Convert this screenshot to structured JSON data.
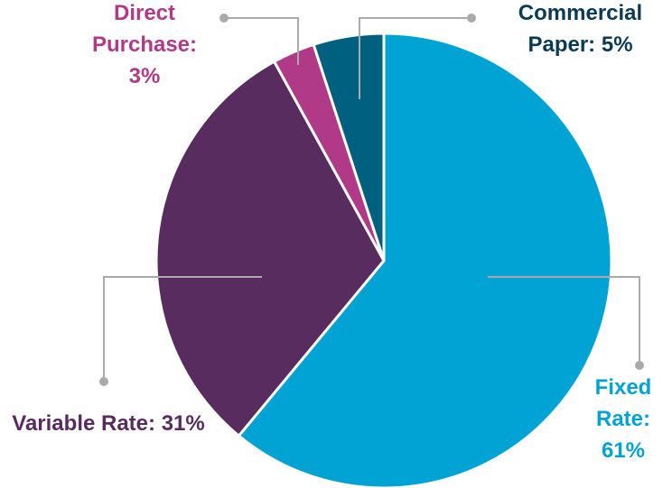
{
  "chart_data": {
    "type": "pie",
    "categories": [
      "Fixed Rate:",
      "Variable Rate:",
      "Direct Purchase:",
      "Commercial Paper:"
    ],
    "values": [
      61,
      31,
      3,
      5
    ],
    "value_labels": [
      "61%",
      "31%",
      "3%",
      "5%"
    ],
    "colors": [
      "#00a3d4",
      "#582c5e",
      "#b03a87",
      "#006080"
    ],
    "label_colors": [
      "#00a3d4",
      "#582c5e",
      "#b03a87",
      "#0b3a55"
    ]
  }
}
